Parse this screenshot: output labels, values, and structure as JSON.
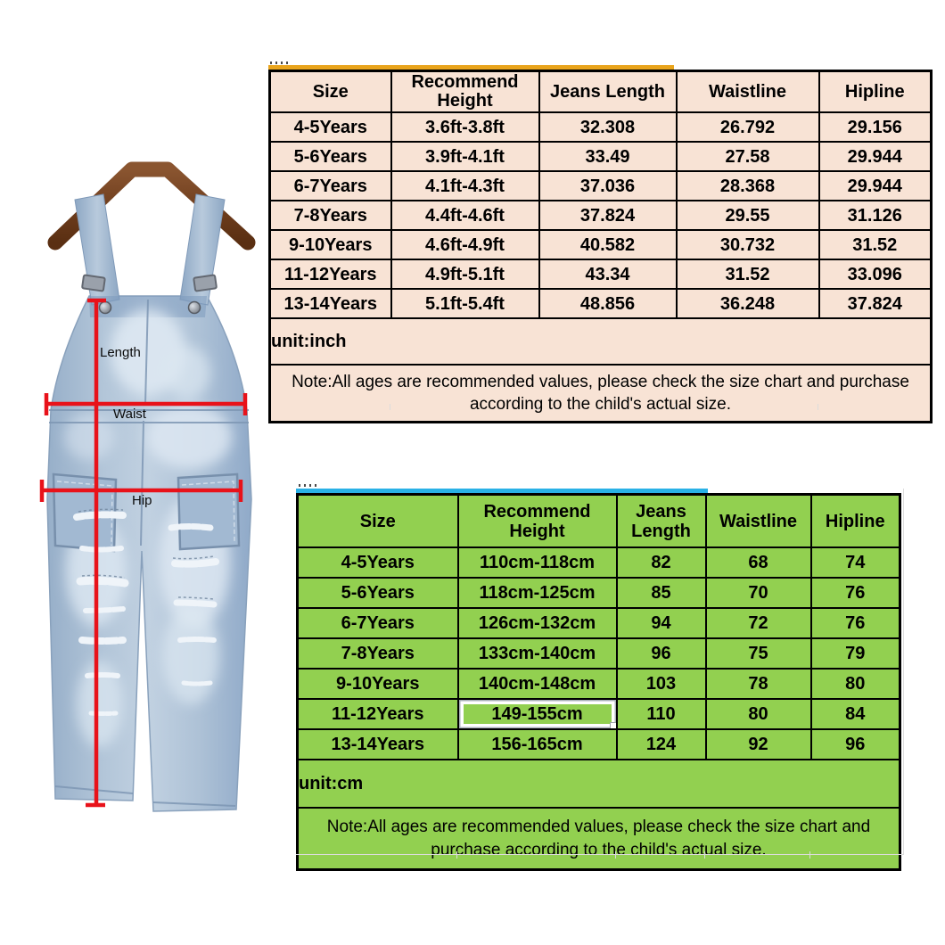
{
  "page": {
    "background": "#ffffff"
  },
  "product_image": {
    "garment": "denim-overalls-on-hanger",
    "line_color": "#e8121a",
    "hanger_color_dark": "#5a2f12",
    "hanger_color_light": "#8a5530",
    "denim_base": "#a9c0d6",
    "labels": {
      "length": "Length",
      "waist": "Waist",
      "hip": "Hip"
    }
  },
  "inch_table": {
    "accent_line_color": "#e9a41c",
    "background": "#f8e3d5",
    "headers": [
      "Size",
      "Recommend Height",
      "Jeans Length",
      "Waistline",
      "Hipline"
    ],
    "rows": [
      [
        "4-5Years",
        "3.6ft-3.8ft",
        "32.308",
        "26.792",
        "29.156"
      ],
      [
        "5-6Years",
        "3.9ft-4.1ft",
        "33.49",
        "27.58",
        "29.944"
      ],
      [
        "6-7Years",
        "4.1ft-4.3ft",
        "37.036",
        "28.368",
        "29.944"
      ],
      [
        "7-8Years",
        "4.4ft-4.6ft",
        "37.824",
        "29.55",
        "31.126"
      ],
      [
        "9-10Years",
        "4.6ft-4.9ft",
        "40.582",
        "30.732",
        "31.52"
      ],
      [
        "11-12Years",
        "4.9ft-5.1ft",
        "43.34",
        "31.52",
        "33.096"
      ],
      [
        "13-14Years",
        "5.1ft-5.4ft",
        "48.856",
        "36.248",
        "37.824"
      ]
    ],
    "unit_label": "unit:inch",
    "note": "Note:All ages are recommended values, please check the size chart and purchase according to the child's actual size."
  },
  "cm_table": {
    "accent_line_color": "#29b1e6",
    "background": "#92d050",
    "headers": [
      "Size",
      "Recommend Height",
      "Jeans Length",
      "Waistline",
      "Hipline"
    ],
    "rows": [
      [
        "4-5Years",
        "110cm-118cm",
        "82",
        "68",
        "74"
      ],
      [
        "5-6Years",
        "118cm-125cm",
        "85",
        "70",
        "76"
      ],
      [
        "6-7Years",
        "126cm-132cm",
        "94",
        "72",
        "76"
      ],
      [
        "7-8Years",
        "133cm-140cm",
        "96",
        "75",
        "79"
      ],
      [
        "9-10Years",
        "140cm-148cm",
        "103",
        "78",
        "80"
      ],
      [
        "11-12Years",
        "149-155cm",
        "110",
        "80",
        "84"
      ],
      [
        "13-14Years",
        "156-165cm",
        "124",
        "92",
        "96"
      ]
    ],
    "selected_cell": {
      "row": 5,
      "col": 1
    },
    "unit_label": "unit:cm",
    "note": "Note:All ages are recommended values, please check the size chart and purchase according to the child's actual size."
  }
}
